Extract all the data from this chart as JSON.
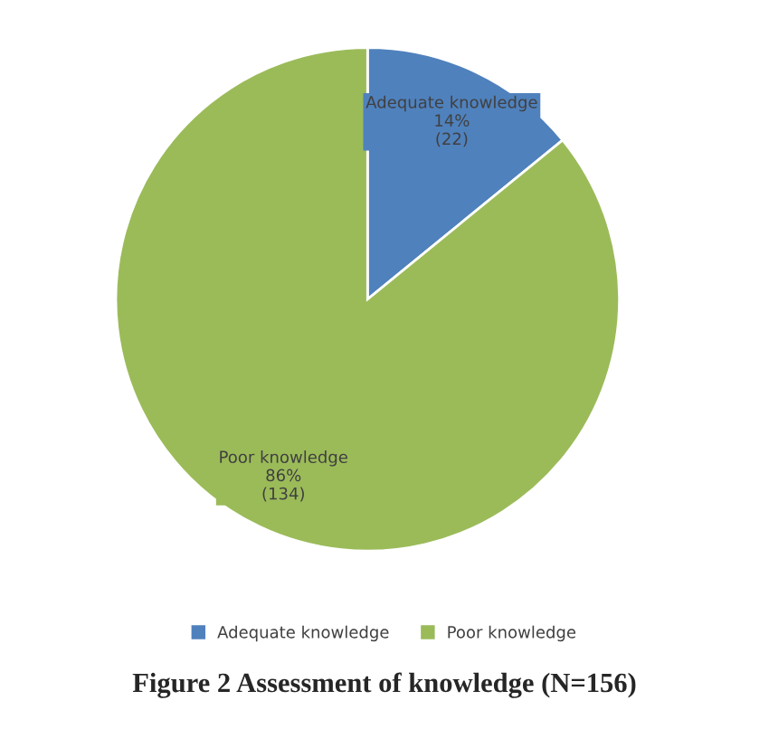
{
  "chart_data": {
    "type": "pie",
    "categories": [
      "Adequate knowledge",
      "Poor knowledge"
    ],
    "values": [
      22,
      134
    ],
    "colors": [
      "#4f81bd",
      "#9bbb59"
    ],
    "value_labels": [
      "14%\n(22)",
      "86%\n(134)"
    ],
    "legend": "bottom",
    "annotations": [
      "Figure 2 Assessment of knowledge (N=156)"
    ]
  }
}
